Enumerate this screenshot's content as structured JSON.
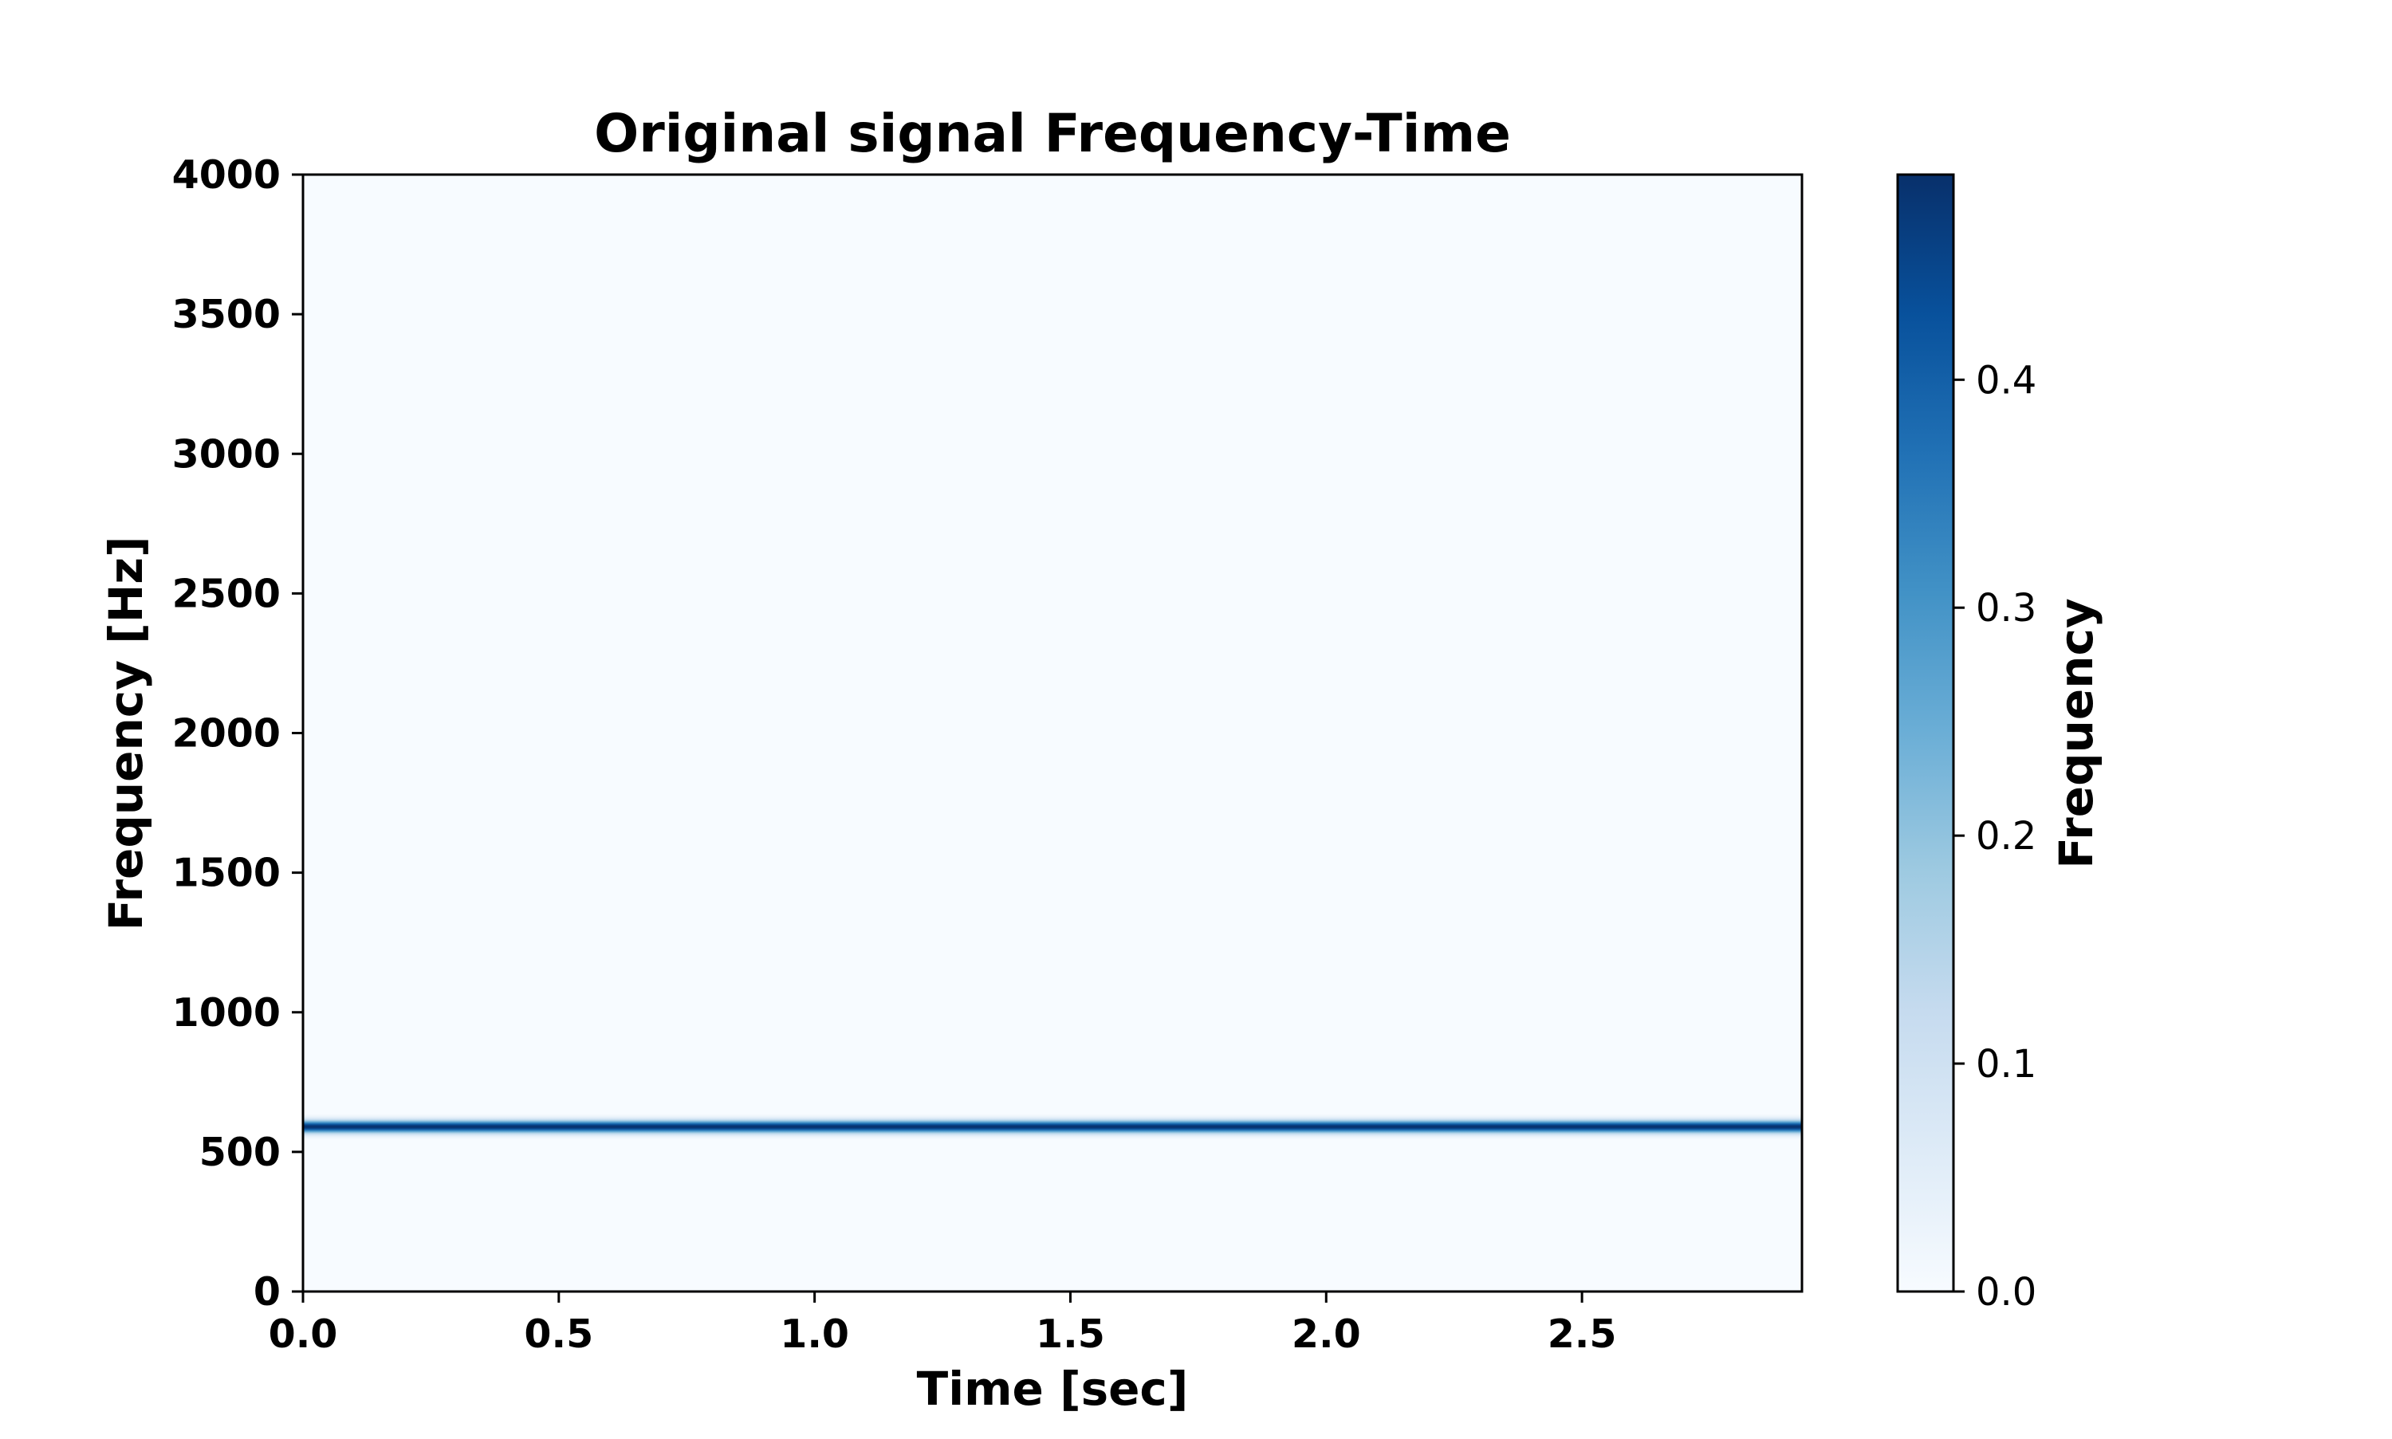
{
  "chart_data": {
    "type": "heatmap",
    "title": "Original signal Frequency-Time",
    "xlabel": "Time [sec]",
    "ylabel": "Frequency [Hz]",
    "xlim": [
      0,
      2.93
    ],
    "ylim": [
      0,
      4000
    ],
    "x_ticks": [
      "0.0",
      "0.5",
      "1.0",
      "1.5",
      "2.0",
      "2.5"
    ],
    "y_ticks": [
      "0",
      "500",
      "1000",
      "1500",
      "2000",
      "2500",
      "3000",
      "3500",
      "4000"
    ],
    "colormap": "Blues",
    "colors": [
      "#f7fbff",
      "#deebf7",
      "#c6dbef",
      "#9ecae1",
      "#6baed6",
      "#4292c6",
      "#2171b5",
      "#08519c",
      "#08306b"
    ],
    "band": {
      "center_hz": 590,
      "half_width_hz": 45,
      "time_start": 0,
      "time_end": 2.93,
      "peak_intensity": 0.49,
      "background_intensity": 0.0
    },
    "colorbar": {
      "label": "Frequency",
      "ticks": [
        "0.0",
        "0.1",
        "0.2",
        "0.3",
        "0.4"
      ],
      "range": [
        0,
        0.49
      ]
    },
    "grid": false,
    "legend": "none"
  }
}
